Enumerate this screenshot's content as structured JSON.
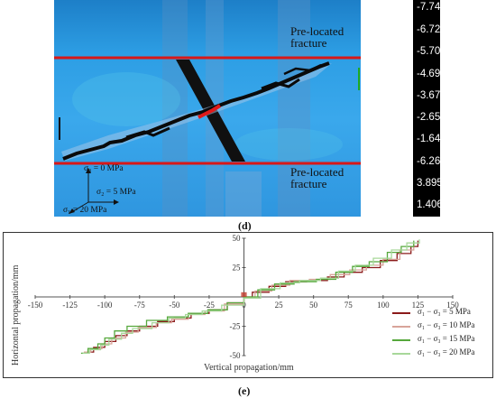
{
  "panel_d": {
    "letter": "(d)",
    "labels": {
      "upper_fracture": "Pre-located\nfracture",
      "lower_fracture": "Pre-located\nfracture"
    },
    "stress_labels": [
      "σ₃ = 0 MPa",
      "σ₂ = 5 MPa",
      "σ₁ = 20 MPa"
    ],
    "colorbar": {
      "ticks": [
        "-7.741e+001",
        "-6.724e+001",
        "-5.708e+001",
        "-4.692e+001",
        "-3.676e+001",
        "-2.659e+001",
        "-1.643e+001",
        "-6.267e+000",
        "3.895e+000",
        "1.406e+001"
      ],
      "top_color": "#ff0000",
      "bottom_color": "#0000aa"
    }
  },
  "panel_e": {
    "letter": "(e)",
    "chart_data": {
      "type": "line",
      "xlabel": "Vertical propagation/mm",
      "ylabel": "Horizontal propagation/mm",
      "xlim": [
        -150,
        150
      ],
      "ylim": [
        -50,
        50
      ],
      "xticks": [
        -150,
        -125,
        -100,
        -75,
        -50,
        -25,
        0,
        25,
        50,
        75,
        100,
        125,
        150
      ],
      "yticks": [
        -50,
        -25,
        0,
        25,
        50
      ],
      "legend_position": "bottom-right",
      "series": [
        {
          "name": "σ₁ − σ₃ = 5 MPa",
          "color": "#8b1a1a",
          "points": [
            [
              -113,
              -47
            ],
            [
              -108,
              -43
            ],
            [
              -100,
              -38
            ],
            [
              -92,
              -33
            ],
            [
              -84,
              -29
            ],
            [
              -75,
              -25
            ],
            [
              -62,
              -21
            ],
            [
              -50,
              -18
            ],
            [
              -38,
              -14
            ],
            [
              -25,
              -11
            ],
            [
              -12,
              -5
            ],
            [
              0,
              0
            ],
            [
              6,
              4
            ],
            [
              18,
              9
            ],
            [
              30,
              13
            ],
            [
              45,
              14
            ],
            [
              60,
              17
            ],
            [
              72,
              21
            ],
            [
              85,
              25
            ],
            [
              98,
              31
            ],
            [
              110,
              37
            ],
            [
              120,
              43
            ],
            [
              125,
              48
            ]
          ]
        },
        {
          "name": "σ₁ − σ₃ = 10 MPa",
          "color": "#d8a49a",
          "points": [
            [
              -115,
              -47
            ],
            [
              -110,
              -44
            ],
            [
              -102,
              -40
            ],
            [
              -95,
              -35
            ],
            [
              -85,
              -30
            ],
            [
              -76,
              -26
            ],
            [
              -63,
              -22
            ],
            [
              -52,
              -19
            ],
            [
              -40,
              -15
            ],
            [
              -28,
              -12
            ],
            [
              -14,
              -6
            ],
            [
              0,
              -1
            ],
            [
              8,
              5
            ],
            [
              20,
              10
            ],
            [
              33,
              14
            ],
            [
              47,
              15
            ],
            [
              62,
              19
            ],
            [
              76,
              23
            ],
            [
              88,
              27
            ],
            [
              100,
              32
            ],
            [
              112,
              40
            ],
            [
              122,
              47
            ]
          ]
        },
        {
          "name": "σ₁ − σ₃ = 15 MPa",
          "color": "#56a83c",
          "points": [
            [
              -117,
              -48
            ],
            [
              -112,
              -44
            ],
            [
              -105,
              -40
            ],
            [
              -100,
              -35
            ],
            [
              -93,
              -29
            ],
            [
              -84,
              -25
            ],
            [
              -70,
              -20
            ],
            [
              -55,
              -17
            ],
            [
              -40,
              -14
            ],
            [
              -26,
              -11
            ],
            [
              -12,
              -5
            ],
            [
              0,
              0
            ],
            [
              10,
              6
            ],
            [
              22,
              11
            ],
            [
              36,
              13
            ],
            [
              52,
              15
            ],
            [
              66,
              21
            ],
            [
              78,
              26
            ],
            [
              90,
              30
            ],
            [
              103,
              38
            ],
            [
              113,
              43
            ],
            [
              122,
              48
            ]
          ]
        },
        {
          "name": "σ₁ − σ₃ = 20 MPa",
          "color": "#a8d89a",
          "points": [
            [
              -116,
              -48
            ],
            [
              -111,
              -45
            ],
            [
              -103,
              -41
            ],
            [
              -97,
              -36
            ],
            [
              -88,
              -31
            ],
            [
              -80,
              -27
            ],
            [
              -66,
              -22
            ],
            [
              -54,
              -18
            ],
            [
              -42,
              -15
            ],
            [
              -30,
              -12
            ],
            [
              -16,
              -7
            ],
            [
              0,
              -1
            ],
            [
              12,
              7
            ],
            [
              26,
              12
            ],
            [
              40,
              14
            ],
            [
              55,
              16
            ],
            [
              68,
              22
            ],
            [
              80,
              27
            ],
            [
              93,
              33
            ],
            [
              106,
              40
            ],
            [
              117,
              46
            ],
            [
              126,
              49
            ]
          ]
        }
      ]
    }
  }
}
